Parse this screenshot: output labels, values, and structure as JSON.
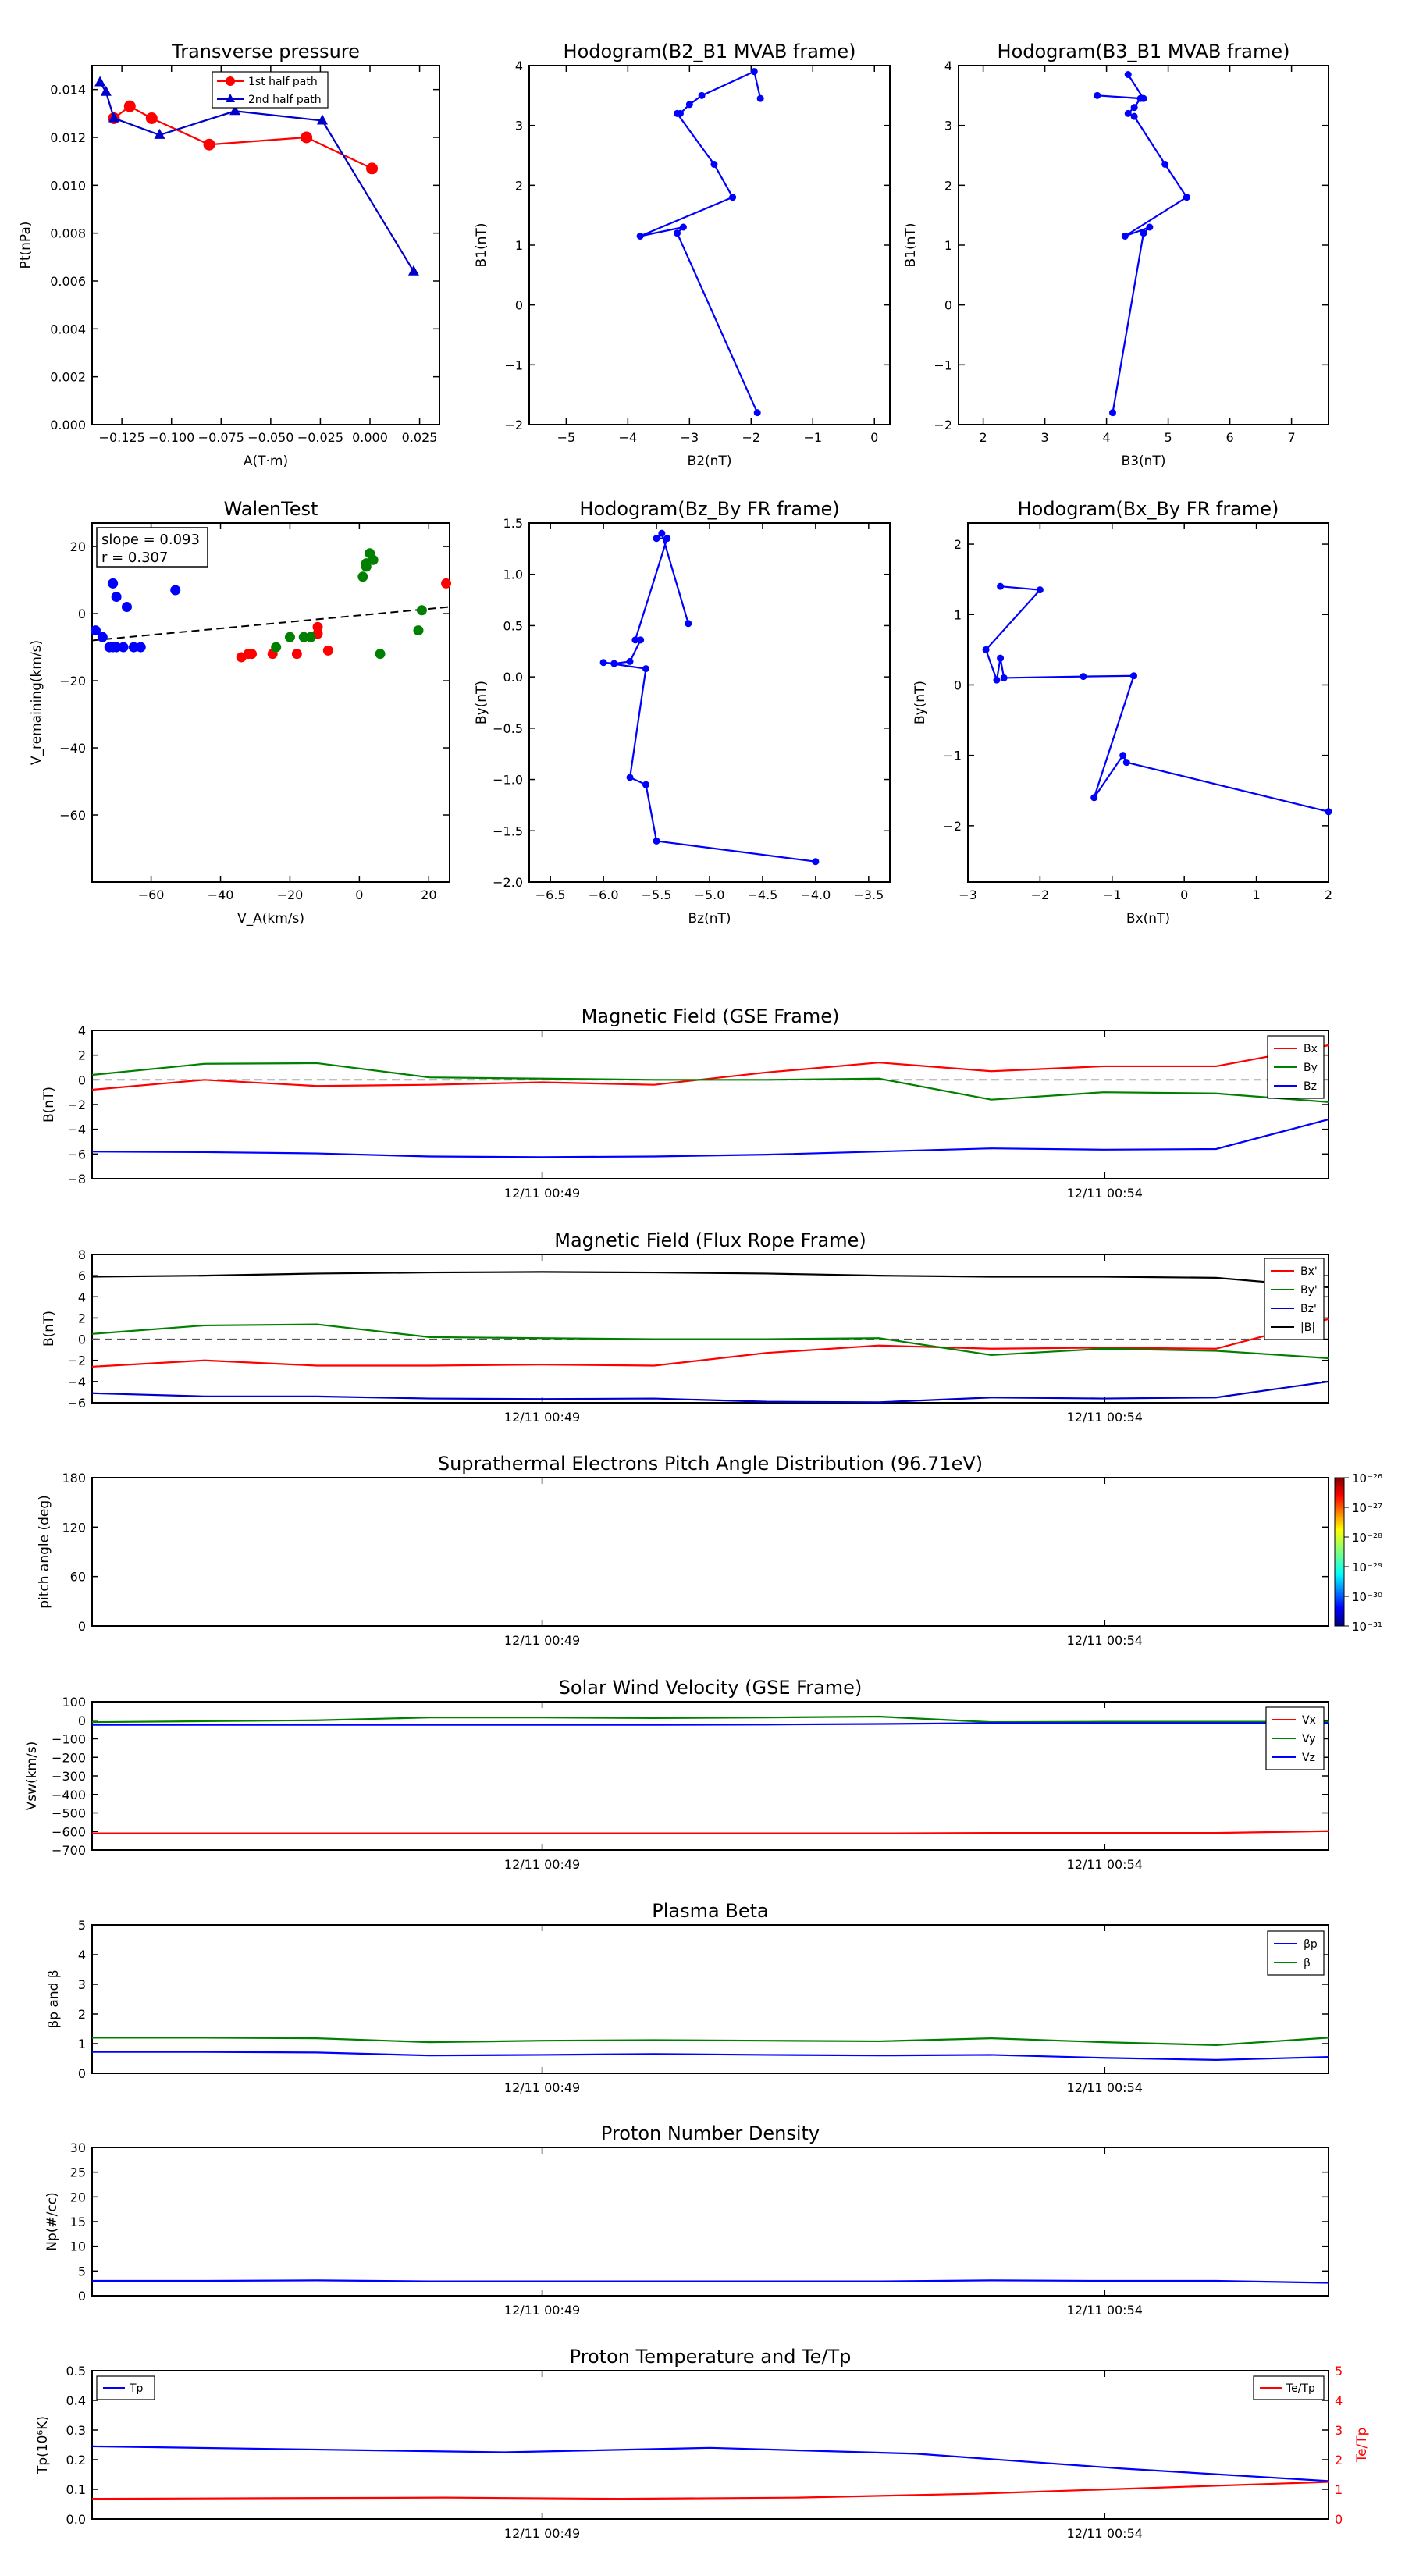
{
  "scatter_panels": {
    "tp": {
      "title": "Transverse pressure",
      "xlabel": "A(T·m)",
      "ylabel": "Pt(nPa)",
      "xticks": [
        "−0.125",
        "−0.100",
        "−0.075",
        "−0.050",
        "−0.025",
        "0.000",
        "0.025"
      ],
      "yticks": [
        "0.000",
        "0.002",
        "0.004",
        "0.006",
        "0.008",
        "0.010",
        "0.012",
        "0.014"
      ],
      "legend": [
        "1st half path",
        "2nd half path"
      ]
    },
    "h1": {
      "title": "Hodogram(B2_B1 MVAB frame)",
      "xlabel": "B2(nT)",
      "ylabel": "B1(nT)",
      "xticks": [
        "−5",
        "−4",
        "−3",
        "−2",
        "−1",
        "0"
      ],
      "yticks": [
        "−2",
        "−1",
        "0",
        "1",
        "2",
        "3",
        "4"
      ]
    },
    "h2": {
      "title": "Hodogram(B3_B1 MVAB frame)",
      "xlabel": "B3(nT)",
      "ylabel": "B1(nT)",
      "xticks": [
        "2",
        "3",
        "4",
        "5",
        "6",
        "7"
      ],
      "yticks": [
        "−2",
        "−1",
        "0",
        "1",
        "2",
        "3",
        "4"
      ]
    },
    "walen": {
      "title": "WalenTest",
      "xlabel": "V_A(km/s)",
      "ylabel": "V_remaining(km/s)",
      "xticks": [
        "−60",
        "−40",
        "−20",
        "0",
        "20"
      ],
      "yticks": [
        "−60",
        "−40",
        "−20",
        "0",
        "20"
      ],
      "annot1": "slope = 0.093",
      "annot2": "r = 0.307"
    },
    "h3": {
      "title": "Hodogram(Bz_By FR frame)",
      "xlabel": "Bz(nT)",
      "ylabel": "By(nT)",
      "xticks": [
        "−6.5",
        "−6.0",
        "−5.5",
        "−5.0",
        "−4.5",
        "−4.0",
        "−3.5"
      ],
      "yticks": [
        "−2.0",
        "−1.5",
        "−1.0",
        "−0.5",
        "0.0",
        "0.5",
        "1.0",
        "1.5"
      ]
    },
    "h4": {
      "title": "Hodogram(Bx_By FR frame)",
      "xlabel": "Bx(nT)",
      "ylabel": "By(nT)",
      "xticks": [
        "−3",
        "−2",
        "−1",
        "0",
        "1",
        "2"
      ],
      "yticks": [
        "−2",
        "−1",
        "0",
        "1",
        "2"
      ]
    }
  },
  "ts_panels": {
    "mag_gse": {
      "title": "Magnetic Field (GSE Frame)",
      "ylabel": "B(nT)",
      "yticks": [
        "−8",
        "−6",
        "−4",
        "−2",
        "0",
        "2",
        "4"
      ],
      "legend": [
        "Bx",
        "By",
        "Bz"
      ]
    },
    "mag_fr": {
      "title": "Magnetic Field (Flux Rope Frame)",
      "ylabel": "B(nT)",
      "yticks": [
        "−6",
        "−4",
        "−2",
        "0",
        "2",
        "4",
        "6",
        "8"
      ],
      "legend": [
        "Bx'",
        "By'",
        "Bz'",
        "|B|"
      ]
    },
    "pad": {
      "title": "Suprathermal Electrons Pitch Angle Distribution (96.71eV)",
      "ylabel": "pitch angle (deg)",
      "yticks": [
        "0",
        "60",
        "120",
        "180"
      ],
      "colorbar": [
        "10⁻²⁶",
        "10⁻²⁷",
        "10⁻²⁸",
        "10⁻²⁹",
        "10⁻³⁰",
        "10⁻³¹"
      ]
    },
    "vsw": {
      "title": "Solar Wind Velocity (GSE Frame)",
      "ylabel": "Vsw(km/s)",
      "yticks": [
        "−700",
        "−600",
        "−500",
        "−400",
        "−300",
        "−200",
        "−100",
        "0",
        "100"
      ],
      "legend": [
        "Vx",
        "Vy",
        "Vz"
      ]
    },
    "beta": {
      "title": "Plasma Beta",
      "ylabel": "βp and β",
      "yticks": [
        "0",
        "1",
        "2",
        "3",
        "4",
        "5"
      ],
      "legend": [
        "βp",
        "β"
      ]
    },
    "np": {
      "title": "Proton Number Density",
      "ylabel": "Np(#/cc)",
      "yticks": [
        "0",
        "5",
        "10",
        "15",
        "20",
        "25",
        "30"
      ]
    },
    "temp": {
      "title": "Proton Temperature and Te/Tp",
      "ylabel": "Tp(10⁶K)",
      "ylabel_right": "Te/Tp",
      "yticks": [
        "0.0",
        "0.1",
        "0.2",
        "0.3",
        "0.4",
        "0.5"
      ],
      "yticks_right": [
        "0",
        "1",
        "2",
        "3",
        "4",
        "5"
      ],
      "legend": [
        "Tp"
      ],
      "legend_right": [
        "Te/Tp"
      ]
    }
  },
  "time_ticks": [
    "12/11 00:49",
    "12/11 00:54"
  ],
  "chart_data": [
    {
      "type": "scatter",
      "title": "Transverse pressure",
      "xlim": [
        -0.14,
        0.035
      ],
      "ylim": [
        0,
        0.015
      ],
      "series": [
        {
          "name": "1st half path",
          "color": "#ff0000",
          "marker": "circle",
          "x": [
            0.001,
            -0.032,
            -0.081,
            -0.11,
            -0.121,
            -0.129
          ],
          "y": [
            0.0107,
            0.012,
            0.0117,
            0.0128,
            0.0133,
            0.0128
          ]
        },
        {
          "name": "2nd half path",
          "color": "#0000cc",
          "marker": "triangle",
          "x": [
            0.022,
            -0.024,
            -0.068,
            -0.106,
            -0.129,
            -0.133,
            -0.136
          ],
          "y": [
            0.0064,
            0.0127,
            0.0131,
            0.0121,
            0.0128,
            0.0139,
            0.0143
          ]
        }
      ]
    },
    {
      "type": "line",
      "title": "Hodogram(B2_B1 MVAB frame)",
      "xlim": [
        -5.6,
        0.25
      ],
      "ylim": [
        -2,
        4
      ],
      "x": [
        -1.9,
        -3.2,
        -3.1,
        -3.8,
        -2.3,
        -2.6,
        -3.2,
        -3.15,
        -3.0,
        -2.8,
        -1.95,
        -1.85
      ],
      "y": [
        -1.8,
        1.2,
        1.3,
        1.15,
        1.8,
        2.35,
        3.2,
        3.2,
        3.35,
        3.5,
        3.9,
        3.45
      ],
      "color": "#0000ff"
    },
    {
      "type": "line",
      "title": "Hodogram(B3_B1 MVAB frame)",
      "xlim": [
        1.6,
        7.6
      ],
      "ylim": [
        -2,
        4
      ],
      "x": [
        4.1,
        4.6,
        4.7,
        4.3,
        5.3,
        4.95,
        4.45,
        4.35,
        4.45,
        4.55,
        3.85,
        4.6,
        4.35
      ],
      "y": [
        -1.8,
        1.2,
        1.3,
        1.15,
        1.8,
        2.35,
        3.15,
        3.2,
        3.3,
        3.45,
        3.5,
        3.45,
        3.85
      ],
      "color": "#0000ff"
    },
    {
      "type": "scatter",
      "title": "WalenTest",
      "xlim": [
        -77,
        26
      ],
      "ylim": [
        -80,
        27
      ],
      "series": [
        {
          "color": "#0000ff",
          "x": [
            -76,
            -74,
            -72,
            -70,
            -71,
            -70,
            -68,
            -67,
            -65,
            -63,
            -53,
            -71
          ],
          "y": [
            -5,
            -7,
            -10,
            -10,
            -10,
            5,
            -10,
            2,
            -10,
            -10,
            7,
            9
          ]
        },
        {
          "color": "#ff0000",
          "x": [
            -34,
            -32,
            -31,
            -25,
            -18,
            -14,
            -12,
            -12,
            -9,
            25
          ],
          "y": [
            -13,
            -12,
            -12,
            -12,
            -12,
            -7,
            -6,
            -4,
            -11,
            9
          ]
        },
        {
          "color": "#008000",
          "x": [
            -24,
            -20,
            -16,
            -14,
            1,
            2,
            2,
            3,
            4,
            6,
            17,
            18
          ],
          "y": [
            -10,
            -7,
            -7,
            -7,
            11,
            14,
            15,
            18,
            16,
            -12,
            -5,
            1
          ]
        }
      ],
      "fit": {
        "x": [
          -77,
          26
        ],
        "y": [
          -8,
          2
        ]
      }
    },
    {
      "type": "line",
      "title": "Hodogram(Bz_By FR frame)",
      "xlim": [
        -6.7,
        -3.3
      ],
      "ylim": [
        -2,
        1.5
      ],
      "x": [
        -4.0,
        -5.5,
        -5.6,
        -5.75,
        -5.6,
        -6.0,
        -5.9,
        -5.75,
        -5.65,
        -5.7,
        -5.4,
        -5.5,
        -5.45,
        -5.2
      ],
      "y": [
        -1.8,
        -1.6,
        -1.05,
        -0.98,
        0.08,
        0.14,
        0.13,
        0.15,
        0.36,
        0.36,
        1.35,
        1.35,
        1.4,
        0.52
      ],
      "color": "#0000ff"
    },
    {
      "type": "line",
      "title": "Hodogram(Bx_By FR frame)",
      "xlim": [
        -3,
        2
      ],
      "ylim": [
        -2.8,
        2.3
      ],
      "x": [
        2.0,
        -0.8,
        -0.85,
        -1.25,
        -0.7,
        -1.4,
        -2.5,
        -2.55,
        -2.6,
        -2.75,
        -2.0,
        -2.55
      ],
      "y": [
        -1.8,
        -1.1,
        -1.0,
        -1.6,
        0.13,
        0.12,
        0.1,
        0.38,
        0.07,
        0.5,
        1.35,
        1.4
      ],
      "color": "#0000ff"
    },
    {
      "type": "line",
      "title": "Magnetic Field (GSE Frame)",
      "ylim": [
        -8,
        4
      ],
      "series": [
        {
          "name": "Bx",
          "color": "#ff0000",
          "y": [
            -0.8,
            0,
            -0.5,
            -0.4,
            -0.2,
            -0.4,
            0.6,
            1.4,
            0.7,
            1.1,
            1.1,
            2.8
          ]
        },
        {
          "name": "By",
          "color": "#008000",
          "y": [
            0.4,
            1.3,
            1.35,
            0.2,
            0.1,
            0,
            0,
            0.1,
            -1.6,
            -1.0,
            -1.1,
            -1.8
          ]
        },
        {
          "name": "Bz",
          "color": "#0000ff",
          "y": [
            -5.8,
            -5.85,
            -5.95,
            -6.2,
            -6.25,
            -6.2,
            -6.05,
            -5.8,
            -5.55,
            -5.65,
            -5.6,
            -3.2
          ]
        }
      ]
    },
    {
      "type": "line",
      "title": "Magnetic Field (Flux Rope Frame)",
      "ylim": [
        -6,
        8
      ],
      "series": [
        {
          "name": "Bx'",
          "color": "#ff0000",
          "y": [
            -2.6,
            -2.0,
            -2.5,
            -2.5,
            -2.4,
            -2.5,
            -1.3,
            -0.6,
            -0.9,
            -0.8,
            -0.9,
            1.9
          ]
        },
        {
          "name": "By'",
          "color": "#008000",
          "y": [
            0.5,
            1.3,
            1.4,
            0.2,
            0.1,
            0,
            0,
            0.1,
            -1.5,
            -0.9,
            -1.1,
            -1.8
          ]
        },
        {
          "name": "Bz'",
          "color": "#0000cc",
          "y": [
            -5.1,
            -5.4,
            -5.4,
            -5.6,
            -5.65,
            -5.6,
            -5.9,
            -5.95,
            -5.5,
            -5.6,
            -5.5,
            -4.0
          ]
        },
        {
          "name": "|B|",
          "color": "#000000",
          "y": [
            5.9,
            6.0,
            6.2,
            6.3,
            6.35,
            6.3,
            6.2,
            6.0,
            5.9,
            5.9,
            5.8,
            4.9
          ]
        }
      ]
    },
    {
      "type": "heatmap",
      "title": "Suprathermal Electrons Pitch Angle Distribution (96.71eV)",
      "ylim": [
        0,
        180
      ],
      "values": []
    },
    {
      "type": "line",
      "title": "Solar Wind Velocity (GSE Frame)",
      "ylim": [
        -700,
        100
      ],
      "series": [
        {
          "name": "Vx",
          "color": "#ff0000",
          "y": [
            -610,
            -610,
            -610,
            -610,
            -610,
            -610,
            -610,
            -610,
            -608,
            -608,
            -608,
            -598
          ]
        },
        {
          "name": "Vy",
          "color": "#008000",
          "y": [
            -10,
            -5,
            0,
            15,
            15,
            12,
            15,
            20,
            -10,
            -8,
            -8,
            -8
          ]
        },
        {
          "name": "Vz",
          "color": "#0000ff",
          "y": [
            -25,
            -25,
            -25,
            -25,
            -25,
            -25,
            -23,
            -20,
            -15,
            -15,
            -15,
            -15
          ]
        }
      ]
    },
    {
      "type": "line",
      "title": "Plasma Beta",
      "ylim": [
        0,
        5
      ],
      "series": [
        {
          "name": "βp",
          "color": "#0000ff",
          "y": [
            0.72,
            0.72,
            0.7,
            0.6,
            0.62,
            0.65,
            0.62,
            0.6,
            0.62,
            0.52,
            0.45,
            0.55
          ]
        },
        {
          "name": "β",
          "color": "#008000",
          "y": [
            1.2,
            1.2,
            1.18,
            1.05,
            1.1,
            1.12,
            1.1,
            1.08,
            1.18,
            1.05,
            0.95,
            1.2
          ]
        }
      ]
    },
    {
      "type": "line",
      "title": "Proton Number Density",
      "ylim": [
        0,
        30
      ],
      "series": [
        {
          "color": "#0000ff",
          "y": [
            3.0,
            3.0,
            3.1,
            2.9,
            2.9,
            2.9,
            2.9,
            2.9,
            3.1,
            3.0,
            3.0,
            2.6
          ]
        }
      ]
    },
    {
      "type": "line",
      "title": "Proton Temperature and Te/Tp",
      "ylim": [
        0,
        0.5
      ],
      "ylim_right": [
        0,
        5
      ],
      "series": [
        {
          "name": "Tp",
          "color": "#0000ff",
          "axis": "left",
          "y": [
            0.245,
            0.235,
            0.225,
            0.24,
            0.22,
            0.17,
            0.128
          ]
        },
        {
          "name": "Te/Tp",
          "color": "#ff0000",
          "axis": "right",
          "y": [
            0.68,
            0.7,
            0.72,
            0.68,
            0.72,
            0.85,
            1.05,
            1.25
          ]
        }
      ]
    }
  ]
}
